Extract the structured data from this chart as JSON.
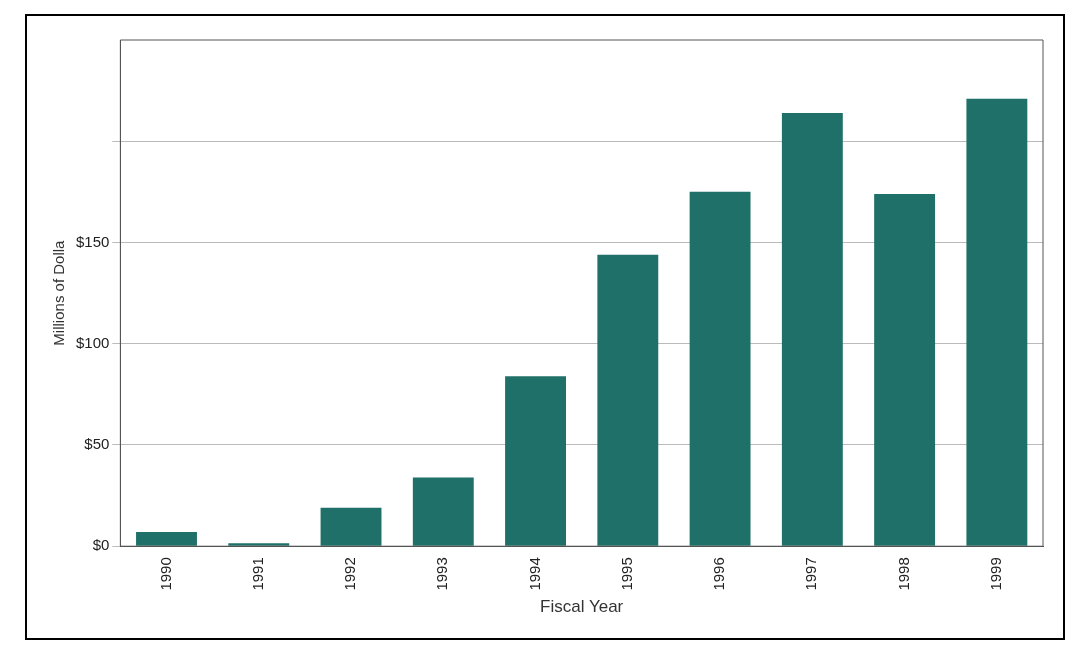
{
  "chart_data": {
    "type": "bar",
    "xlabel": "Fiscal Year",
    "ylabel": "Millions of Dolla",
    "categories": [
      "1990",
      "1991",
      "1992",
      "1993",
      "1994",
      "1995",
      "1996",
      "1997",
      "1998",
      "1999"
    ],
    "values": [
      7,
      1.5,
      19,
      34,
      84,
      144,
      175,
      214,
      174,
      221
    ],
    "color": "#1f7068",
    "ylim": [
      0,
      250
    ],
    "yticks": [
      {
        "value": 0,
        "label": "$0"
      },
      {
        "value": 50,
        "label": "$50"
      },
      {
        "value": 100,
        "label": "$100"
      },
      {
        "value": 150,
        "label": "$150"
      },
      {
        "value": 200,
        "label": null
      }
    ],
    "grid": "y"
  }
}
